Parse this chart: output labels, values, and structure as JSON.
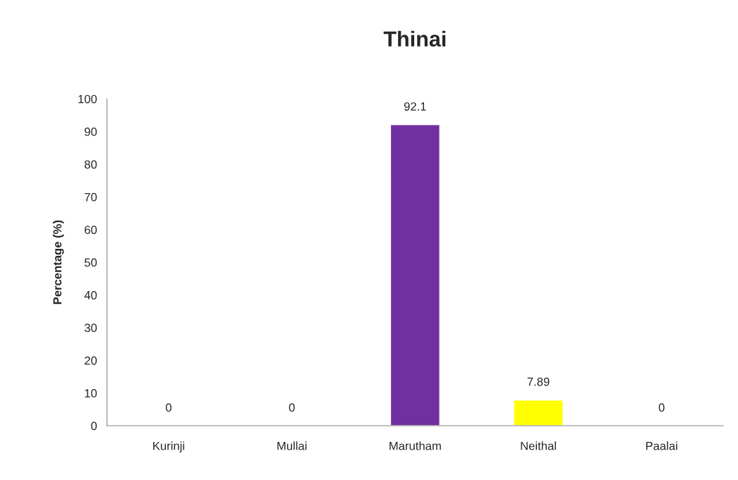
{
  "chart_data": {
    "type": "bar",
    "title": "Thinai",
    "ylabel": "Percentage (%)",
    "categories": [
      "Kurinji",
      "Mullai",
      "Marutham",
      "Neithal",
      "Paalai"
    ],
    "values": [
      0,
      0,
      92.1,
      7.89,
      0
    ],
    "colors": [
      null,
      null,
      "#7030a0",
      "#ffff00",
      null
    ],
    "ylim": [
      0,
      100
    ],
    "yticks": [
      0,
      10,
      20,
      30,
      40,
      50,
      60,
      70,
      80,
      90,
      100
    ],
    "data_labels": true
  }
}
